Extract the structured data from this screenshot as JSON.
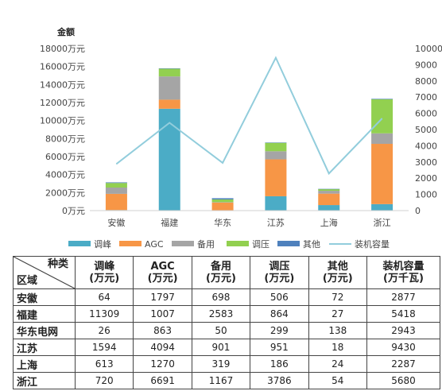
{
  "chart_data": {
    "type": "bar",
    "stacked": true,
    "ylabel": "金额",
    "categories": [
      "安徽",
      "福建",
      "华东",
      "江苏",
      "上海",
      "浙江"
    ],
    "series": [
      {
        "name": "调峰",
        "type": "bar",
        "color": "#4bacc6",
        "values": [
          64,
          11309,
          26,
          1594,
          613,
          720
        ]
      },
      {
        "name": "AGC",
        "type": "bar",
        "color": "#f79646",
        "values": [
          1797,
          1007,
          863,
          4094,
          1270,
          6691
        ]
      },
      {
        "name": "备用",
        "type": "bar",
        "color": "#a5a5a5",
        "values": [
          698,
          2583,
          50,
          901,
          319,
          1167
        ]
      },
      {
        "name": "调压",
        "type": "bar",
        "color": "#92d050",
        "values": [
          506,
          864,
          299,
          951,
          186,
          3786
        ]
      },
      {
        "name": "其他",
        "type": "bar",
        "color": "#4f81bd",
        "values": [
          72,
          27,
          138,
          18,
          24,
          54
        ]
      },
      {
        "name": "装机容量",
        "type": "line",
        "axis": "secondary",
        "color": "#92cddc",
        "values": [
          2877,
          5418,
          2943,
          9430,
          2287,
          5680
        ]
      }
    ],
    "ylim": [
      0,
      18000
    ],
    "yticks": [
      "0万元",
      "2000万元",
      "4000万元",
      "6000万元",
      "8000万元",
      "10000万元",
      "12000万元",
      "14000万元",
      "16000万元",
      "18000万元"
    ],
    "y2lim": [
      0,
      10000
    ],
    "y2ticks": [
      "0",
      "1000",
      "2000",
      "3000",
      "4000",
      "5000",
      "6000",
      "7000",
      "8000",
      "9000",
      "10000"
    ],
    "legend_position": "bottom",
    "grid": false
  },
  "table": {
    "corner_top": "种类",
    "corner_bottom": "区域",
    "headers": [
      {
        "line1": "调峰",
        "line2": "(万元)"
      },
      {
        "line1": "AGC",
        "line2": "(万元)"
      },
      {
        "line1": "备用",
        "line2": "(万元)"
      },
      {
        "line1": "调压",
        "line2": "(万元)"
      },
      {
        "line1": "其他",
        "line2": "(万元)"
      },
      {
        "line1": "装机容量",
        "line2": "(万千瓦)"
      }
    ],
    "rows": [
      {
        "region": "安徽",
        "values": [
          "64",
          "1797",
          "698",
          "506",
          "72",
          "2877"
        ]
      },
      {
        "region": "福建",
        "values": [
          "11309",
          "1007",
          "2583",
          "864",
          "27",
          "5418"
        ]
      },
      {
        "region": "华东电网",
        "values": [
          "26",
          "863",
          "50",
          "299",
          "138",
          "2943"
        ]
      },
      {
        "region": "江苏",
        "values": [
          "1594",
          "4094",
          "901",
          "951",
          "18",
          "9430"
        ]
      },
      {
        "region": "上海",
        "values": [
          "613",
          "1270",
          "319",
          "186",
          "24",
          "2287"
        ]
      },
      {
        "region": "浙江",
        "values": [
          "720",
          "6691",
          "1167",
          "3786",
          "54",
          "5680"
        ]
      }
    ]
  }
}
